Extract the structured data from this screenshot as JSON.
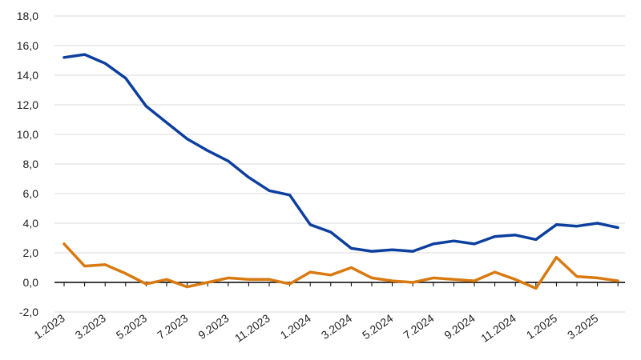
{
  "chart_data": {
    "type": "line",
    "x": [
      "1.2023",
      "2.2023",
      "3.2023",
      "4.2023",
      "5.2023",
      "6.2023",
      "7.2023",
      "8.2023",
      "9.2023",
      "10.2023",
      "11.2023",
      "12.2023",
      "1.2024",
      "2.2024",
      "3.2024",
      "4.2024",
      "5.2024",
      "6.2024",
      "7.2024",
      "8.2024",
      "9.2024",
      "10.2024",
      "11.2024",
      "12.2024",
      "1.2025",
      "2.2025",
      "3.2025",
      "4.2025"
    ],
    "x_tick_labels": [
      "1.2023",
      "3.2023",
      "5.2023",
      "7.2023",
      "9.2023",
      "11.2023",
      "1.2024",
      "3.2024",
      "5.2024",
      "7.2024",
      "9.2024",
      "11.2024",
      "1.2025",
      "3.2025"
    ],
    "series": [
      {
        "color": "#0d3f9e",
        "values": [
          15.2,
          15.4,
          14.8,
          13.8,
          11.9,
          10.8,
          9.7,
          8.9,
          8.2,
          7.1,
          6.2,
          5.9,
          3.9,
          3.4,
          2.3,
          2.1,
          2.2,
          2.1,
          2.6,
          2.8,
          2.6,
          3.1,
          3.2,
          2.9,
          3.9,
          3.8,
          4.0,
          3.7
        ]
      },
      {
        "color": "#d97a11",
        "values": [
          2.6,
          1.1,
          1.2,
          0.6,
          -0.1,
          0.2,
          -0.3,
          0.0,
          0.3,
          0.2,
          0.2,
          -0.1,
          0.7,
          0.5,
          1.0,
          0.3,
          0.1,
          0.0,
          0.3,
          0.2,
          0.1,
          0.7,
          0.2,
          -0.4,
          1.7,
          0.4,
          0.3,
          0.1
        ]
      }
    ],
    "y_ticks": [
      "-2,0",
      "0,0",
      "2,0",
      "4,0",
      "6,0",
      "8,0",
      "10,0",
      "12,0",
      "14,0",
      "16,0",
      "18,0"
    ],
    "ylim": [
      -2,
      18
    ],
    "grid": true,
    "title": "",
    "xlabel": "",
    "ylabel": ""
  }
}
